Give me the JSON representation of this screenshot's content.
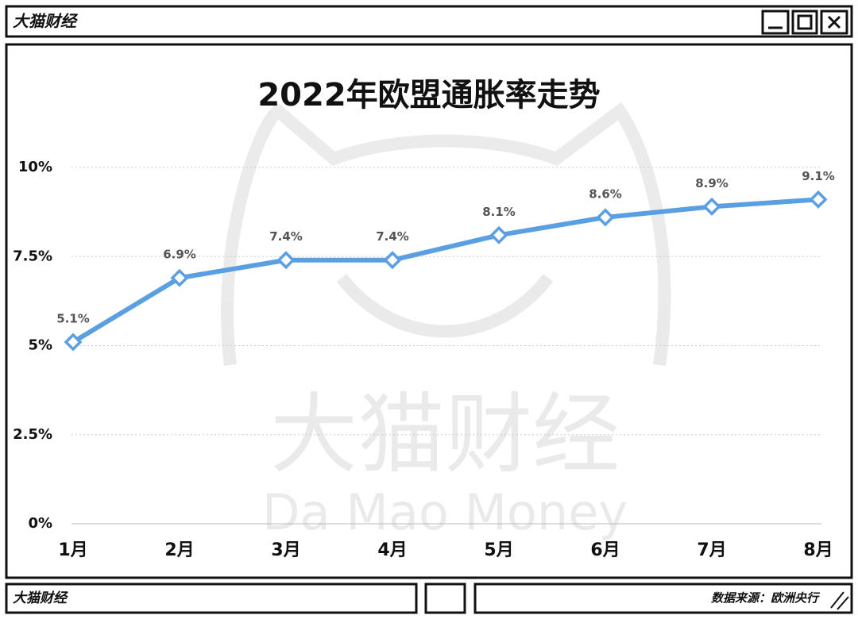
{
  "window": {
    "title": "大猫财经"
  },
  "chart_data": {
    "type": "line",
    "title": "2022年欧盟通胀率走势",
    "categories": [
      "1月",
      "2月",
      "3月",
      "4月",
      "5月",
      "6月",
      "7月",
      "8月"
    ],
    "series": [
      {
        "color": "#5b9fe3",
        "values": [
          5.1,
          6.9,
          7.4,
          7.4,
          8.1,
          8.6,
          8.9,
          9.1
        ],
        "value_labels": [
          "5.1%",
          "6.9%",
          "7.4%",
          "7.4%",
          "8.1%",
          "8.6%",
          "8.9%",
          "9.1%"
        ]
      }
    ],
    "ylim": [
      0,
      10
    ],
    "yticks": [
      {
        "value": 0,
        "label": "0%"
      },
      {
        "value": 2.5,
        "label": "2.5%"
      },
      {
        "value": 5,
        "label": "5%"
      },
      {
        "value": 7.5,
        "label": "7.5%"
      },
      {
        "value": 10,
        "label": "10%"
      }
    ],
    "grid": true
  },
  "watermark": {
    "cn": "大猫财经",
    "en": "Da Mao Money"
  },
  "footer": {
    "brand": "大猫财经",
    "source": "数据来源：欧洲央行"
  }
}
